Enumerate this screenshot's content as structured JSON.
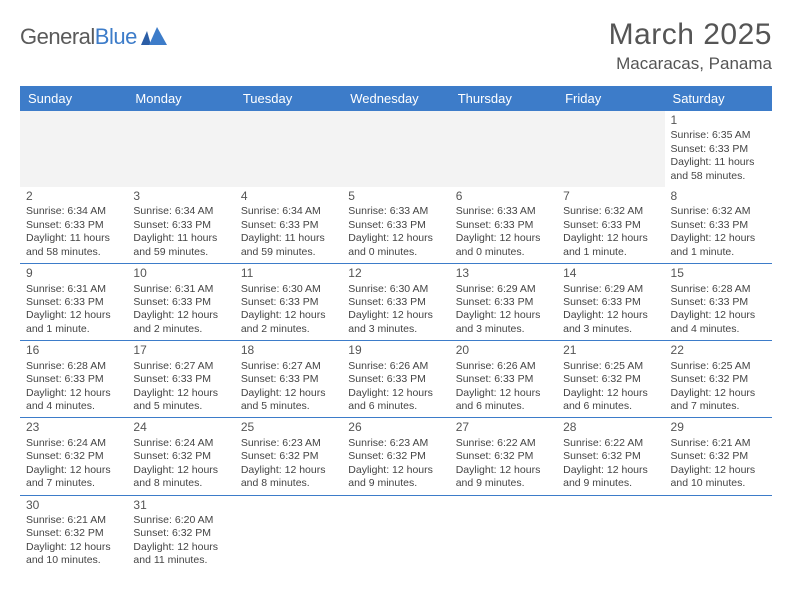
{
  "brand": {
    "name_part1": "General",
    "name_part2": "Blue"
  },
  "title": "March 2025",
  "location": "Macaracas, Panama",
  "colors": {
    "header_bg": "#3d7cc9",
    "header_text": "#ffffff",
    "row_divider": "#3d7cc9",
    "body_text": "#444444",
    "title_text": "#555555",
    "blank_bg": "#f3f3f3",
    "page_bg": "#ffffff"
  },
  "typography": {
    "title_fontsize_pt": 22,
    "location_fontsize_pt": 13,
    "dayheader_fontsize_pt": 10,
    "cell_fontsize_pt": 8
  },
  "day_headers": [
    "Sunday",
    "Monday",
    "Tuesday",
    "Wednesday",
    "Thursday",
    "Friday",
    "Saturday"
  ],
  "weeks": [
    [
      null,
      null,
      null,
      null,
      null,
      null,
      {
        "n": "1",
        "sunrise": "Sunrise: 6:35 AM",
        "sunset": "Sunset: 6:33 PM",
        "daylight": "Daylight: 11 hours and 58 minutes."
      }
    ],
    [
      {
        "n": "2",
        "sunrise": "Sunrise: 6:34 AM",
        "sunset": "Sunset: 6:33 PM",
        "daylight": "Daylight: 11 hours and 58 minutes."
      },
      {
        "n": "3",
        "sunrise": "Sunrise: 6:34 AM",
        "sunset": "Sunset: 6:33 PM",
        "daylight": "Daylight: 11 hours and 59 minutes."
      },
      {
        "n": "4",
        "sunrise": "Sunrise: 6:34 AM",
        "sunset": "Sunset: 6:33 PM",
        "daylight": "Daylight: 11 hours and 59 minutes."
      },
      {
        "n": "5",
        "sunrise": "Sunrise: 6:33 AM",
        "sunset": "Sunset: 6:33 PM",
        "daylight": "Daylight: 12 hours and 0 minutes."
      },
      {
        "n": "6",
        "sunrise": "Sunrise: 6:33 AM",
        "sunset": "Sunset: 6:33 PM",
        "daylight": "Daylight: 12 hours and 0 minutes."
      },
      {
        "n": "7",
        "sunrise": "Sunrise: 6:32 AM",
        "sunset": "Sunset: 6:33 PM",
        "daylight": "Daylight: 12 hours and 1 minute."
      },
      {
        "n": "8",
        "sunrise": "Sunrise: 6:32 AM",
        "sunset": "Sunset: 6:33 PM",
        "daylight": "Daylight: 12 hours and 1 minute."
      }
    ],
    [
      {
        "n": "9",
        "sunrise": "Sunrise: 6:31 AM",
        "sunset": "Sunset: 6:33 PM",
        "daylight": "Daylight: 12 hours and 1 minute."
      },
      {
        "n": "10",
        "sunrise": "Sunrise: 6:31 AM",
        "sunset": "Sunset: 6:33 PM",
        "daylight": "Daylight: 12 hours and 2 minutes."
      },
      {
        "n": "11",
        "sunrise": "Sunrise: 6:30 AM",
        "sunset": "Sunset: 6:33 PM",
        "daylight": "Daylight: 12 hours and 2 minutes."
      },
      {
        "n": "12",
        "sunrise": "Sunrise: 6:30 AM",
        "sunset": "Sunset: 6:33 PM",
        "daylight": "Daylight: 12 hours and 3 minutes."
      },
      {
        "n": "13",
        "sunrise": "Sunrise: 6:29 AM",
        "sunset": "Sunset: 6:33 PM",
        "daylight": "Daylight: 12 hours and 3 minutes."
      },
      {
        "n": "14",
        "sunrise": "Sunrise: 6:29 AM",
        "sunset": "Sunset: 6:33 PM",
        "daylight": "Daylight: 12 hours and 3 minutes."
      },
      {
        "n": "15",
        "sunrise": "Sunrise: 6:28 AM",
        "sunset": "Sunset: 6:33 PM",
        "daylight": "Daylight: 12 hours and 4 minutes."
      }
    ],
    [
      {
        "n": "16",
        "sunrise": "Sunrise: 6:28 AM",
        "sunset": "Sunset: 6:33 PM",
        "daylight": "Daylight: 12 hours and 4 minutes."
      },
      {
        "n": "17",
        "sunrise": "Sunrise: 6:27 AM",
        "sunset": "Sunset: 6:33 PM",
        "daylight": "Daylight: 12 hours and 5 minutes."
      },
      {
        "n": "18",
        "sunrise": "Sunrise: 6:27 AM",
        "sunset": "Sunset: 6:33 PM",
        "daylight": "Daylight: 12 hours and 5 minutes."
      },
      {
        "n": "19",
        "sunrise": "Sunrise: 6:26 AM",
        "sunset": "Sunset: 6:33 PM",
        "daylight": "Daylight: 12 hours and 6 minutes."
      },
      {
        "n": "20",
        "sunrise": "Sunrise: 6:26 AM",
        "sunset": "Sunset: 6:33 PM",
        "daylight": "Daylight: 12 hours and 6 minutes."
      },
      {
        "n": "21",
        "sunrise": "Sunrise: 6:25 AM",
        "sunset": "Sunset: 6:32 PM",
        "daylight": "Daylight: 12 hours and 6 minutes."
      },
      {
        "n": "22",
        "sunrise": "Sunrise: 6:25 AM",
        "sunset": "Sunset: 6:32 PM",
        "daylight": "Daylight: 12 hours and 7 minutes."
      }
    ],
    [
      {
        "n": "23",
        "sunrise": "Sunrise: 6:24 AM",
        "sunset": "Sunset: 6:32 PM",
        "daylight": "Daylight: 12 hours and 7 minutes."
      },
      {
        "n": "24",
        "sunrise": "Sunrise: 6:24 AM",
        "sunset": "Sunset: 6:32 PM",
        "daylight": "Daylight: 12 hours and 8 minutes."
      },
      {
        "n": "25",
        "sunrise": "Sunrise: 6:23 AM",
        "sunset": "Sunset: 6:32 PM",
        "daylight": "Daylight: 12 hours and 8 minutes."
      },
      {
        "n": "26",
        "sunrise": "Sunrise: 6:23 AM",
        "sunset": "Sunset: 6:32 PM",
        "daylight": "Daylight: 12 hours and 9 minutes."
      },
      {
        "n": "27",
        "sunrise": "Sunrise: 6:22 AM",
        "sunset": "Sunset: 6:32 PM",
        "daylight": "Daylight: 12 hours and 9 minutes."
      },
      {
        "n": "28",
        "sunrise": "Sunrise: 6:22 AM",
        "sunset": "Sunset: 6:32 PM",
        "daylight": "Daylight: 12 hours and 9 minutes."
      },
      {
        "n": "29",
        "sunrise": "Sunrise: 6:21 AM",
        "sunset": "Sunset: 6:32 PM",
        "daylight": "Daylight: 12 hours and 10 minutes."
      }
    ],
    [
      {
        "n": "30",
        "sunrise": "Sunrise: 6:21 AM",
        "sunset": "Sunset: 6:32 PM",
        "daylight": "Daylight: 12 hours and 10 minutes."
      },
      {
        "n": "31",
        "sunrise": "Sunrise: 6:20 AM",
        "sunset": "Sunset: 6:32 PM",
        "daylight": "Daylight: 12 hours and 11 minutes."
      },
      null,
      null,
      null,
      null,
      null
    ]
  ]
}
